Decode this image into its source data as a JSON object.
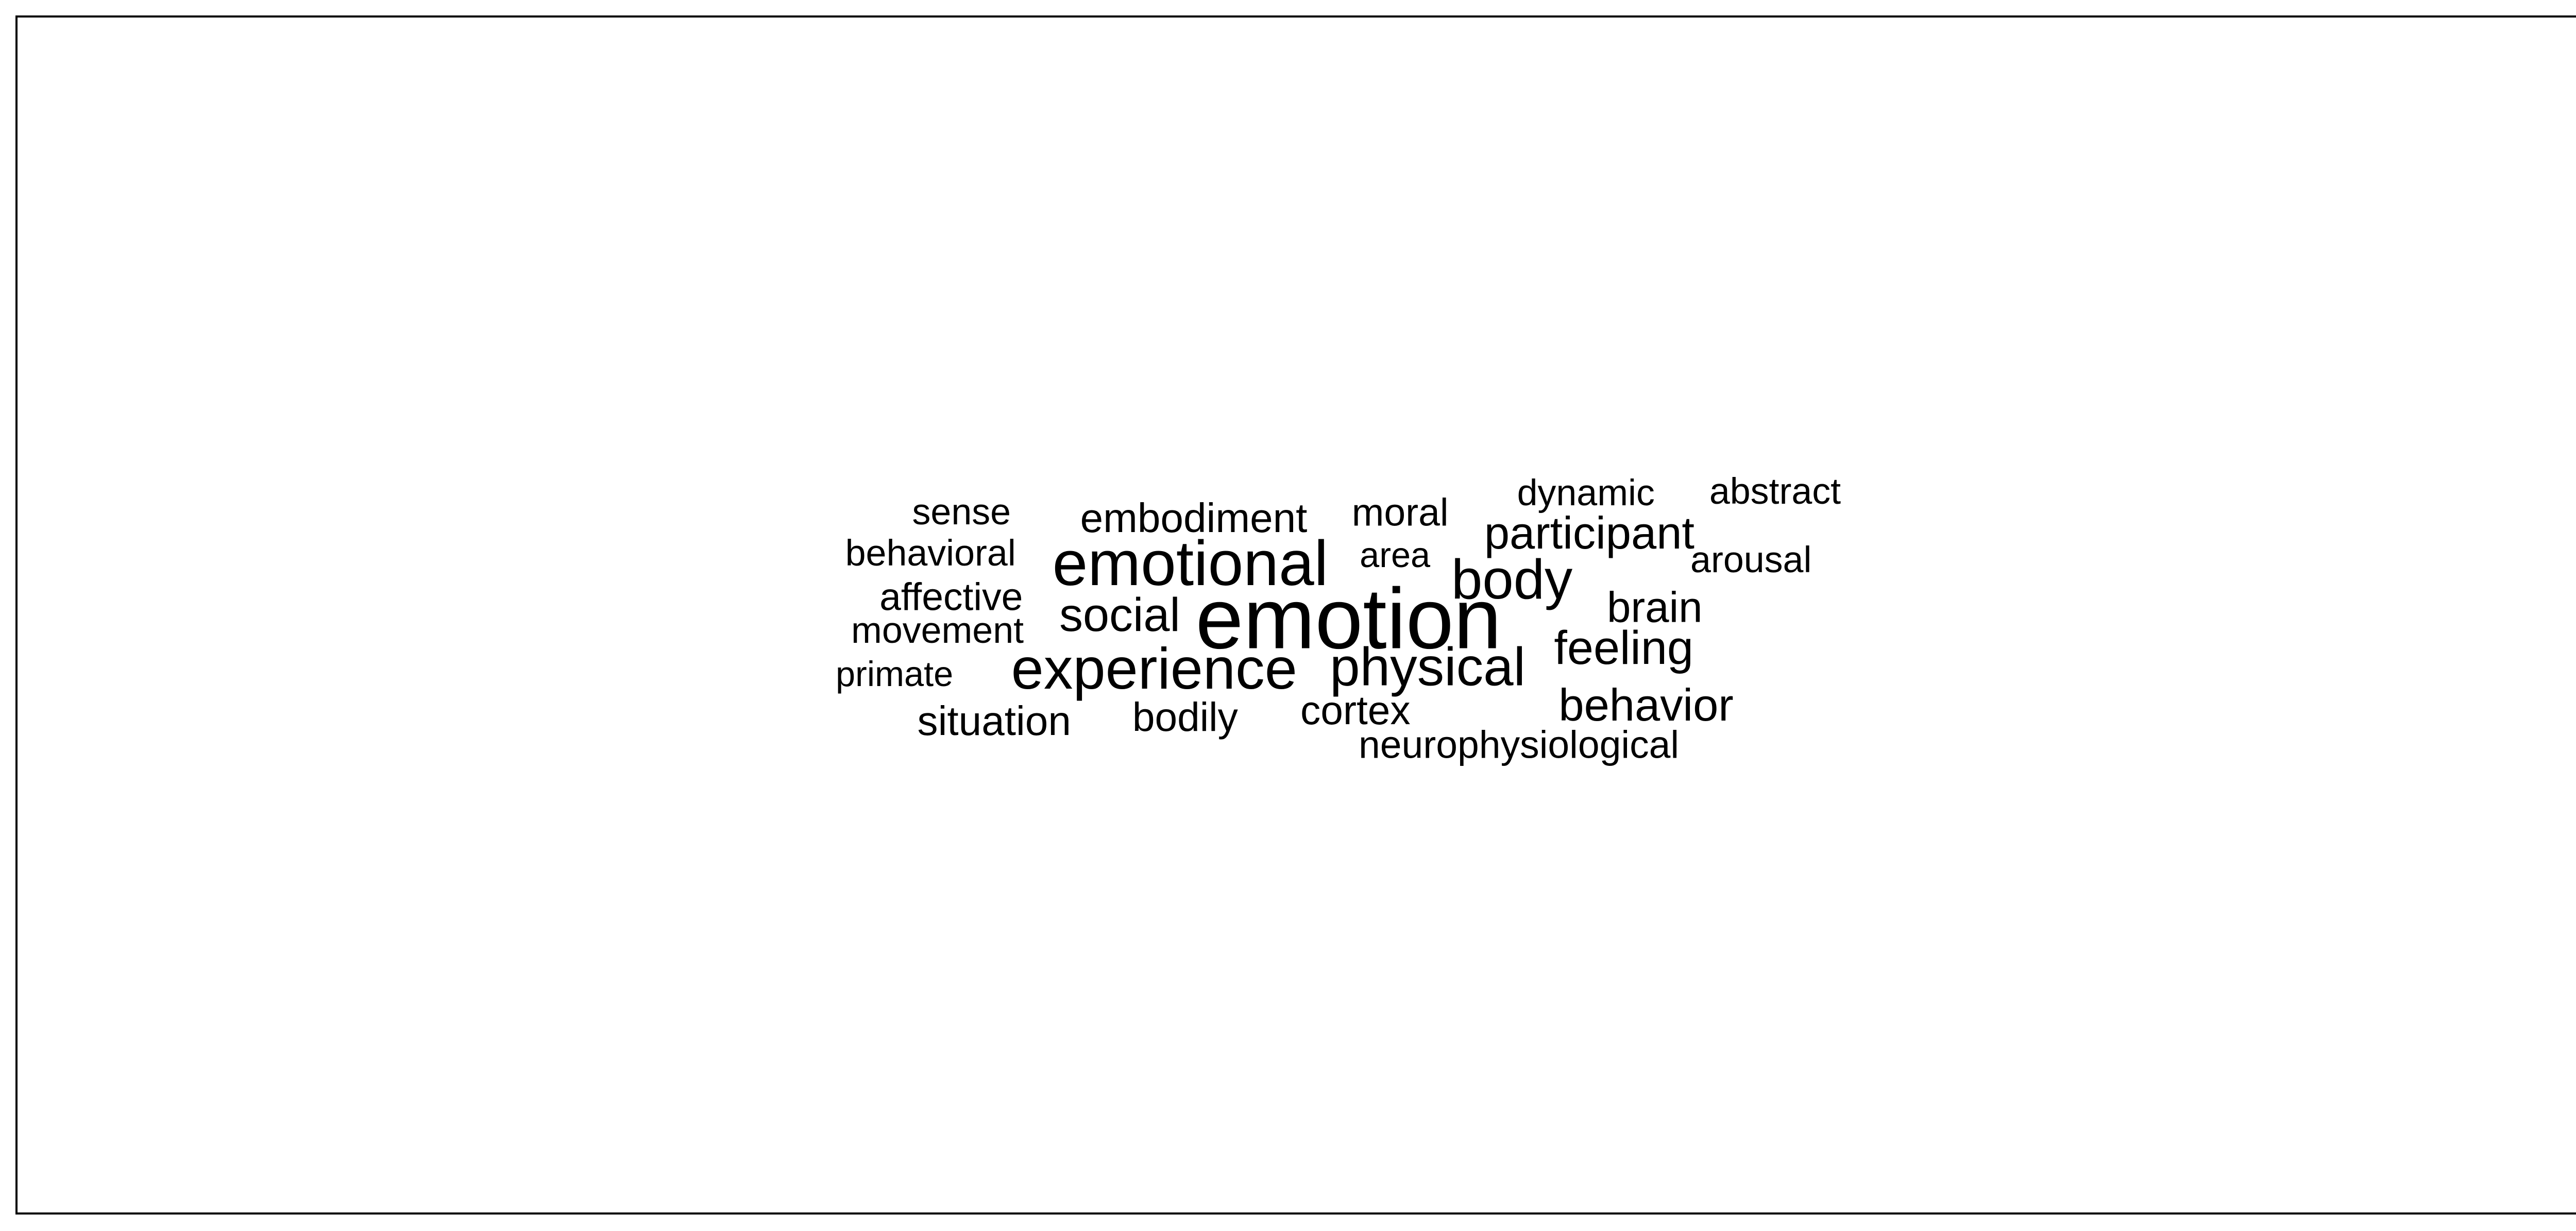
{
  "word_cloud": {
    "words": [
      {
        "text": "emotion",
        "weight": 1.0
      },
      {
        "text": "emotional",
        "weight": 0.74
      },
      {
        "text": "experience",
        "weight": 0.68
      },
      {
        "text": "body",
        "weight": 0.65
      },
      {
        "text": "physical",
        "weight": 0.63
      },
      {
        "text": "social",
        "weight": 0.55
      },
      {
        "text": "participant",
        "weight": 0.53
      },
      {
        "text": "feeling",
        "weight": 0.55
      },
      {
        "text": "behavior",
        "weight": 0.53
      },
      {
        "text": "embodiment",
        "weight": 0.48
      },
      {
        "text": "brain",
        "weight": 0.5
      },
      {
        "text": "situation",
        "weight": 0.48
      },
      {
        "text": "bodily",
        "weight": 0.47
      },
      {
        "text": "cortex",
        "weight": 0.47
      },
      {
        "text": "movement",
        "weight": 0.43
      },
      {
        "text": "affective",
        "weight": 0.45
      },
      {
        "text": "behavioral",
        "weight": 0.43
      },
      {
        "text": "neurophysiological",
        "weight": 0.45
      },
      {
        "text": "arousal",
        "weight": 0.43
      },
      {
        "text": "moral",
        "weight": 0.45
      },
      {
        "text": "sense",
        "weight": 0.43
      },
      {
        "text": "dynamic",
        "weight": 0.43
      },
      {
        "text": "abstract",
        "weight": 0.43
      },
      {
        "text": "primate",
        "weight": 0.41
      },
      {
        "text": "area",
        "weight": 0.41
      }
    ],
    "color": "#000000"
  }
}
